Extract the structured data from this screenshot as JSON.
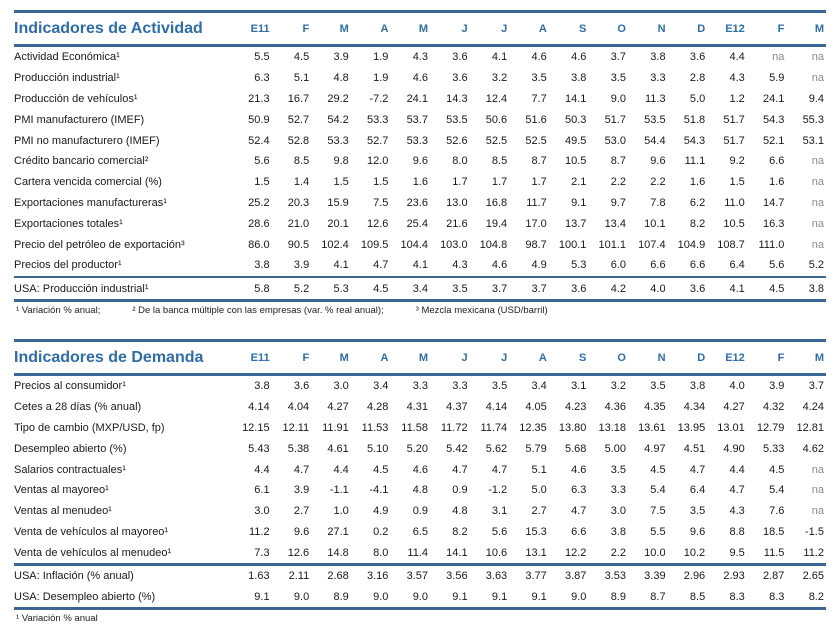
{
  "colors": {
    "accent_blue_text": "#2e6da8",
    "accent_blue_line": "#3c6695",
    "na_gray": "#8a8a8a",
    "body_text": "#1a1a1a"
  },
  "columns": [
    "E11",
    "F",
    "M",
    "A",
    "M",
    "J",
    "J",
    "A",
    "S",
    "O",
    "N",
    "D",
    "E12",
    "F",
    "M"
  ],
  "tables": [
    {
      "title": "Indicadores de Actividad",
      "rows": [
        {
          "label": "Actividad Económica¹",
          "values": [
            "5.5",
            "4.5",
            "3.9",
            "1.9",
            "4.3",
            "3.6",
            "4.1",
            "4.6",
            "4.6",
            "3.7",
            "3.8",
            "3.6",
            "4.4",
            "na",
            "na"
          ]
        },
        {
          "label": "Producción industrial¹",
          "values": [
            "6.3",
            "5.1",
            "4.8",
            "1.9",
            "4.6",
            "3.6",
            "3.2",
            "3.5",
            "3.8",
            "3.5",
            "3.3",
            "2.8",
            "4.3",
            "5.9",
            "na"
          ]
        },
        {
          "label": "Producción de vehículos¹",
          "values": [
            "21.3",
            "16.7",
            "29.2",
            "-7.2",
            "24.1",
            "14.3",
            "12.4",
            "7.7",
            "14.1",
            "9.0",
            "11.3",
            "5.0",
            "1.2",
            "24.1",
            "9.4"
          ]
        },
        {
          "label": "PMI manufacturero (IMEF)",
          "values": [
            "50.9",
            "52.7",
            "54.2",
            "53.3",
            "53.7",
            "53.5",
            "50.6",
            "51.6",
            "50.3",
            "51.7",
            "53.5",
            "51.8",
            "51.7",
            "54.3",
            "55.3"
          ]
        },
        {
          "label": "PMI no manufacturero (IMEF)",
          "values": [
            "52.4",
            "52.8",
            "53.3",
            "52.7",
            "53.3",
            "52.6",
            "52.5",
            "52.5",
            "49.5",
            "53.0",
            "54.4",
            "54.3",
            "51.7",
            "52.1",
            "53.1"
          ]
        },
        {
          "label": "Crédito bancario comercial²",
          "values": [
            "5.6",
            "8.5",
            "9.8",
            "12.0",
            "9.6",
            "8.0",
            "8.5",
            "8.7",
            "10.5",
            "8.7",
            "9.6",
            "11.1",
            "9.2",
            "6.6",
            "na"
          ]
        },
        {
          "label": "Cartera vencida comercial (%)",
          "values": [
            "1.5",
            "1.4",
            "1.5",
            "1.5",
            "1.6",
            "1.7",
            "1.7",
            "1.7",
            "2.1",
            "2.2",
            "2.2",
            "1.6",
            "1.5",
            "1.6",
            "na"
          ]
        },
        {
          "label": "Exportaciones manufactureras¹",
          "values": [
            "25.2",
            "20.3",
            "15.9",
            "7.5",
            "23.6",
            "13.0",
            "16.8",
            "11.7",
            "9.1",
            "9.7",
            "7.8",
            "6.2",
            "11.0",
            "14.7",
            "na"
          ]
        },
        {
          "label": "Exportaciones totales¹",
          "values": [
            "28.6",
            "21.0",
            "20.1",
            "12.6",
            "25.4",
            "21.6",
            "19.4",
            "17.0",
            "13.7",
            "13.4",
            "10.1",
            "8.2",
            "10.5",
            "16.3",
            "na"
          ]
        },
        {
          "label": "Precio del petróleo de exportación³",
          "values": [
            "86.0",
            "90.5",
            "102.4",
            "109.5",
            "104.4",
            "103.0",
            "104.8",
            "98.7",
            "100.1",
            "101.1",
            "107.4",
            "104.9",
            "108.7",
            "111.0",
            "na"
          ]
        },
        {
          "label": "Precios del productor¹",
          "values": [
            "3.8",
            "3.9",
            "4.1",
            "4.7",
            "4.1",
            "4.3",
            "4.6",
            "4.9",
            "5.3",
            "6.0",
            "6.6",
            "6.6",
            "6.4",
            "5.6",
            "5.2"
          ]
        }
      ],
      "usa_rows": [
        {
          "label": "USA: Producción industrial¹",
          "values": [
            "5.8",
            "5.2",
            "5.3",
            "4.5",
            "3.4",
            "3.5",
            "3.7",
            "3.7",
            "3.6",
            "4.2",
            "4.0",
            "3.6",
            "4.1",
            "4.5",
            "3.8"
          ]
        }
      ],
      "footnotes": [
        "¹ Variación % anual;",
        "² De la banca múltiple con las empresas (var. % real anual);",
        "³ Mezcla mexicana (USD/barril)"
      ]
    },
    {
      "title": "Indicadores de Demanda",
      "rows": [
        {
          "label": "Precios al consumidor¹",
          "values": [
            "3.8",
            "3.6",
            "3.0",
            "3.4",
            "3.3",
            "3.3",
            "3.5",
            "3.4",
            "3.1",
            "3.2",
            "3.5",
            "3.8",
            "4.0",
            "3.9",
            "3.7"
          ]
        },
        {
          "label": "Cetes a 28 días (% anual)",
          "values": [
            "4.14",
            "4.04",
            "4.27",
            "4.28",
            "4.31",
            "4.37",
            "4.14",
            "4.05",
            "4.23",
            "4.36",
            "4.35",
            "4.34",
            "4.27",
            "4.32",
            "4.24"
          ]
        },
        {
          "label": "Tipo de cambio (MXP/USD, fp)",
          "values": [
            "12.15",
            "12.11",
            "11.91",
            "11.53",
            "11.58",
            "11.72",
            "11.74",
            "12.35",
            "13.80",
            "13.18",
            "13.61",
            "13.95",
            "13.01",
            "12.79",
            "12.81"
          ]
        },
        {
          "label": "Desempleo abierto (%)",
          "values": [
            "5.43",
            "5.38",
            "4.61",
            "5.10",
            "5.20",
            "5.42",
            "5.62",
            "5.79",
            "5.68",
            "5.00",
            "4.97",
            "4.51",
            "4.90",
            "5.33",
            "4.62"
          ]
        },
        {
          "label": "Salarios contractuales¹",
          "values": [
            "4.4",
            "4.7",
            "4.4",
            "4.5",
            "4.6",
            "4.7",
            "4.7",
            "5.1",
            "4.6",
            "3.5",
            "4.5",
            "4.7",
            "4.4",
            "4.5",
            "na"
          ]
        },
        {
          "label": "Ventas al mayoreo¹",
          "values": [
            "6.1",
            "3.9",
            "-1.1",
            "-4.1",
            "4.8",
            "0.9",
            "-1.2",
            "5.0",
            "6.3",
            "3.3",
            "5.4",
            "6.4",
            "4.7",
            "5.4",
            "na"
          ]
        },
        {
          "label": "Ventas al menudeo¹",
          "values": [
            "3.0",
            "2.7",
            "1.0",
            "4.9",
            "0.9",
            "4.8",
            "3.1",
            "2.7",
            "4.7",
            "3.0",
            "7.5",
            "3.5",
            "4.3",
            "7.6",
            "na"
          ]
        },
        {
          "label": "Venta de vehículos al mayoreo¹",
          "values": [
            "11.2",
            "9.6",
            "27.1",
            "0.2",
            "6.5",
            "8.2",
            "5.6",
            "15.3",
            "6.6",
            "3.8",
            "5.5",
            "9.6",
            "8.8",
            "18.5",
            "-1.5"
          ]
        },
        {
          "label": "Venta de vehículos al menudeo¹",
          "values": [
            "7.3",
            "12.6",
            "14.8",
            "8.0",
            "11.4",
            "14.1",
            "10.6",
            "13.1",
            "12.2",
            "2.2",
            "10.0",
            "10.2",
            "9.5",
            "11.5",
            "11.2"
          ]
        }
      ],
      "usa_rows": [
        {
          "label": "USA: Inflación (% anual)",
          "values": [
            "1.63",
            "2.11",
            "2.68",
            "3.16",
            "3.57",
            "3.56",
            "3.63",
            "3.77",
            "3.87",
            "3.53",
            "3.39",
            "2.96",
            "2.93",
            "2.87",
            "2.65"
          ]
        },
        {
          "label": "USA: Desempleo abierto (%)",
          "values": [
            "9.1",
            "9.0",
            "8.9",
            "9.0",
            "9.0",
            "9.1",
            "9.1",
            "9.1",
            "9.0",
            "8.9",
            "8.7",
            "8.5",
            "8.3",
            "8.3",
            "8.2"
          ]
        }
      ],
      "footnotes": [
        "¹ Variación % anual"
      ]
    }
  ]
}
